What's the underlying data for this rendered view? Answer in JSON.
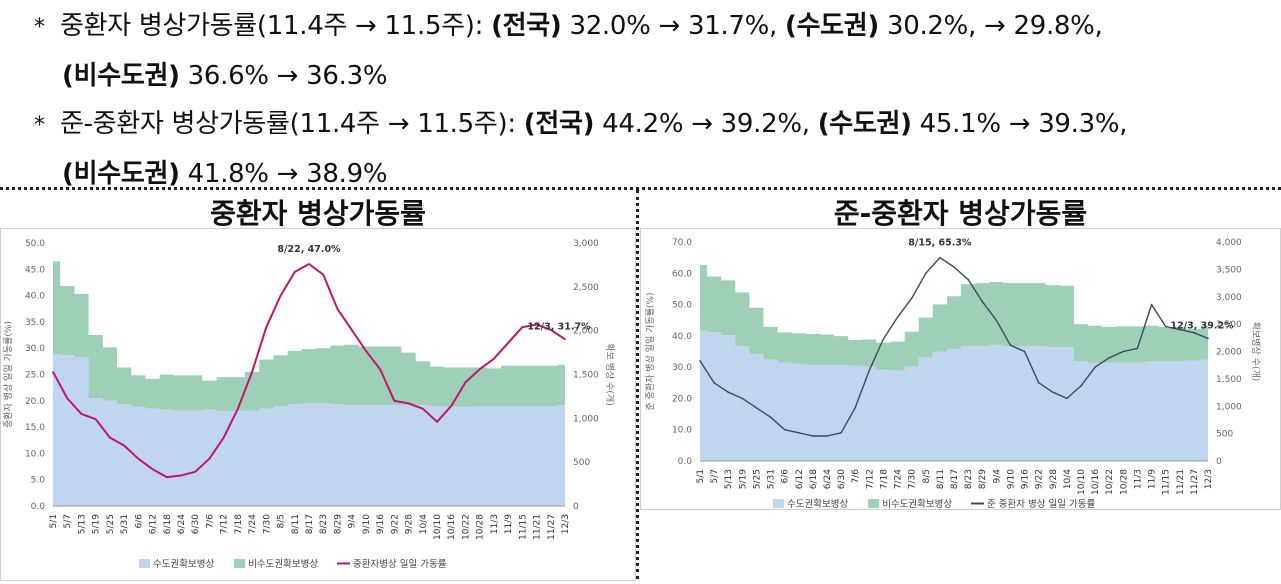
{
  "bullets": [
    {
      "star": "*",
      "line1": {
        "prefix": "중환자 병상가동률(11.4주 → 11.5주): ",
        "r1": "(전국)",
        "v1": " 32.0% → 31.7%, ",
        "r2": "(수도권)",
        "v2": " 30.2%, → 29.8%,"
      },
      "line2": {
        "r3": "(비수도권)",
        "v3": " 36.6% → 36.3%"
      }
    },
    {
      "star": "*",
      "line1": {
        "prefix": "준-중환자 병상가동률(11.4주 → 11.5주): ",
        "r1": "(전국)",
        "v1": " 44.2% → 39.2%, ",
        "r2": "(수도권)",
        "v2": " 45.1% → 39.3%,"
      },
      "line2": {
        "r3": "(비수도권)",
        "v3": " 41.8% → 38.9%"
      }
    }
  ],
  "titles": {
    "left": "중환자 병상가동률",
    "right": "준-중환자 병상가동률"
  },
  "colors": {
    "metro": "#bfd6ee",
    "nonmetro": "#9ecfb7",
    "line1": "#c0156f",
    "line2": "#3b4a5e"
  },
  "chart_data": [
    {
      "type": "area",
      "title": "중환자 병상가동률",
      "ylabel": "중환자 병상 일일 가동률(%)",
      "y2label": "확보 병상 수(개)",
      "ylim": [
        0,
        50
      ],
      "y2lim": [
        0,
        3000
      ],
      "yticks": [
        "0.0",
        "5.0",
        "10.0",
        "15.0",
        "20.0",
        "25.0",
        "30.0",
        "35.0",
        "40.0",
        "45.0",
        "50.0"
      ],
      "y2ticks": [
        "0",
        "500",
        "1,000",
        "1,500",
        "2,000",
        "2,500",
        "3,000"
      ],
      "x_ticks": [
        "5/1",
        "5/7",
        "5/13",
        "5/19",
        "5/25",
        "5/31",
        "6/6",
        "6/12",
        "6/18",
        "6/24",
        "6/30",
        "7/6",
        "7/12",
        "7/18",
        "7/24",
        "7/30",
        "8/5",
        "8/11",
        "8/17",
        "8/23",
        "8/29",
        "9/4",
        "9/10",
        "9/16",
        "9/22",
        "9/28",
        "10/4",
        "10/10",
        "10/16",
        "10/22",
        "10/28",
        "11/3",
        "11/9",
        "11/15",
        "11/21",
        "11/27",
        "12/3"
      ],
      "series": [
        {
          "name": "수도권확보병상",
          "kind": "area",
          "axis": "right",
          "values": [
            1730,
            1720,
            1700,
            1230,
            1200,
            1160,
            1130,
            1110,
            1100,
            1090,
            1090,
            1100,
            1080,
            1080,
            1090,
            1110,
            1140,
            1160,
            1170,
            1170,
            1160,
            1150,
            1150,
            1150,
            1150,
            1150,
            1150,
            1140,
            1130,
            1130,
            1140,
            1140,
            1140,
            1140,
            1140,
            1140,
            1150
          ]
        },
        {
          "name": "비수도권확보병상",
          "kind": "area",
          "axis": "right",
          "values": [
            1060,
            790,
            720,
            720,
            610,
            420,
            360,
            340,
            400,
            400,
            400,
            330,
            390,
            390,
            440,
            560,
            580,
            610,
            620,
            630,
            670,
            690,
            670,
            670,
            670,
            600,
            500,
            450,
            450,
            450,
            440,
            430,
            460,
            460,
            460,
            460,
            460
          ]
        },
        {
          "name": "중환자병상 일일 가동률",
          "kind": "line",
          "axis": "left",
          "values": [
            25.5,
            20.5,
            17.5,
            16.5,
            13.0,
            11.5,
            9.0,
            7.0,
            5.5,
            5.8,
            6.5,
            9.0,
            13.0,
            18.5,
            25.5,
            34.0,
            40.0,
            44.5,
            46.0,
            44.0,
            37.5,
            33.5,
            29.5,
            26.0,
            20.0,
            19.5,
            18.5,
            16.0,
            19.0,
            23.5,
            26.0,
            28.0,
            31.0,
            34.0,
            34.5,
            33.5,
            31.7
          ]
        }
      ],
      "annotations": [
        {
          "text": "8/22, 47.0%"
        },
        {
          "text": "12/3, 31.7%"
        }
      ],
      "legend": [
        "수도권확보병상",
        "비수도권확보병상",
        "중환자병상 일일 가동률"
      ],
      "legend_position": "bottom"
    },
    {
      "type": "area",
      "title": "준-중환자 병상가동률",
      "ylabel": "준 중환자 병상 일일 가동률(%)",
      "y2label": "확보병상 수(개)",
      "ylim": [
        0,
        70
      ],
      "y2lim": [
        0,
        4000
      ],
      "yticks": [
        "0.0",
        "10.0",
        "20.0",
        "30.0",
        "40.0",
        "50.0",
        "60.0",
        "70.0"
      ],
      "y2ticks": [
        "0",
        "500",
        "1,000",
        "1,500",
        "2,000",
        "2,500",
        "3,000",
        "3,500",
        "4,000"
      ],
      "x_ticks": [
        "5/1",
        "5/7",
        "5/13",
        "5/19",
        "5/25",
        "5/31",
        "6/6",
        "6/12",
        "6/18",
        "6/24",
        "6/30",
        "7/6",
        "7/12",
        "7/18",
        "7/24",
        "7/30",
        "8/5",
        "8/11",
        "8/17",
        "8/23",
        "8/29",
        "9/4",
        "9/10",
        "9/16",
        "9/22",
        "9/28",
        "10/4",
        "10/10",
        "10/16",
        "10/22",
        "10/28",
        "11/3",
        "11/9",
        "11/15",
        "11/21",
        "11/27",
        "12/3"
      ],
      "series": [
        {
          "name": "수도권확보병상",
          "kind": "area",
          "axis": "right",
          "values": [
            2380,
            2350,
            2300,
            2100,
            1950,
            1850,
            1800,
            1780,
            1760,
            1760,
            1760,
            1740,
            1720,
            1660,
            1650,
            1720,
            1900,
            2000,
            2050,
            2100,
            2100,
            2120,
            2100,
            2100,
            2100,
            2080,
            2080,
            1820,
            1800,
            1800,
            1800,
            1800,
            1820,
            1820,
            1820,
            1830,
            1850
          ]
        },
        {
          "name": "비수도권확보병상",
          "kind": "area",
          "axis": "right",
          "values": [
            1200,
            1020,
            1000,
            980,
            850,
            600,
            550,
            550,
            560,
            550,
            520,
            470,
            500,
            500,
            530,
            640,
            720,
            860,
            960,
            1130,
            1150,
            1150,
            1150,
            1150,
            1150,
            1130,
            1120,
            680,
            670,
            650,
            660,
            660,
            650,
            630,
            620,
            580,
            620
          ]
        },
        {
          "name": "준 중환자 병상 일일 가동률",
          "kind": "line",
          "axis": "left",
          "values": [
            32.0,
            25.0,
            22.0,
            20.0,
            17.0,
            14.0,
            10.0,
            9.0,
            8.0,
            8.0,
            9.0,
            17.0,
            29.0,
            39.0,
            46.0,
            52.0,
            60.0,
            65.0,
            62.0,
            58.0,
            51.0,
            45.0,
            37.0,
            35.0,
            25.0,
            22.0,
            20.0,
            24.0,
            30.0,
            33.0,
            35.0,
            36.0,
            50.0,
            43.0,
            42.0,
            41.0,
            39.2
          ]
        }
      ],
      "annotations": [
        {
          "text": "8/15, 65.3%"
        },
        {
          "text": "12/3, 39.2%"
        }
      ],
      "legend": [
        "수도권확보병상",
        "비수도권확보병상",
        "준 중환자 병상 일일 가동률"
      ],
      "legend_position": "bottom"
    }
  ]
}
